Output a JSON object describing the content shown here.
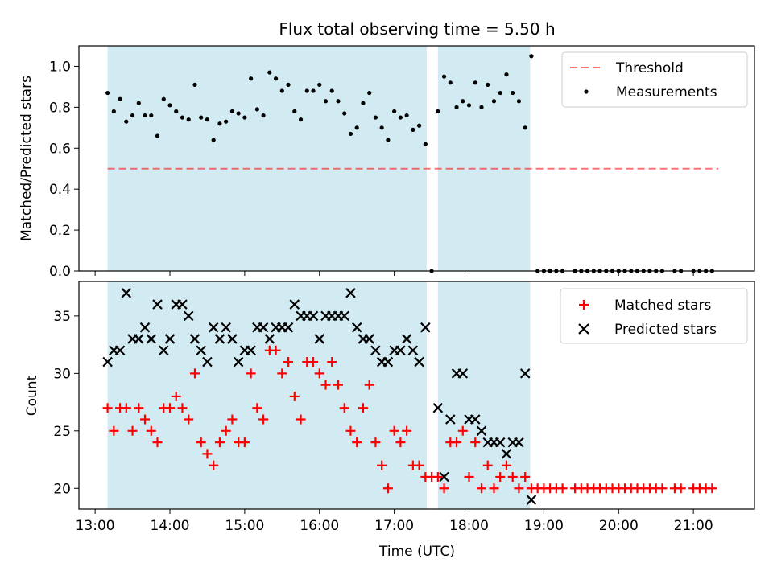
{
  "chart_data": [
    {
      "type": "scatter",
      "title": "Flux total observing time = 5.50 h",
      "ylabel": "Matched/Predicted stars",
      "ylim": [
        0,
        1.1
      ],
      "yticks": [
        0.0,
        0.2,
        0.4,
        0.6,
        0.8,
        1.0
      ],
      "ytick_labels": [
        "0.0",
        "0.2",
        "0.4",
        "0.6",
        "0.8",
        "1.0"
      ],
      "legend_position": "top-right",
      "shaded_intervals": [
        {
          "start": "13:10",
          "end": "17:26",
          "color": "#add8e6"
        },
        {
          "start": "17:35",
          "end": "18:49",
          "color": "#add8e6"
        }
      ],
      "threshold": {
        "name": "Threshold",
        "value": 0.5,
        "x_start": "13:10",
        "x_end": "21:20",
        "color": "#ff0000",
        "style": "dashed"
      },
      "measurements": {
        "name": "Measurements",
        "color": "#000000",
        "points": [
          [
            "13:10",
            0.87
          ],
          [
            "13:15",
            0.78
          ],
          [
            "13:20",
            0.84
          ],
          [
            "13:25",
            0.73
          ],
          [
            "13:30",
            0.76
          ],
          [
            "13:35",
            0.82
          ],
          [
            "13:40",
            0.76
          ],
          [
            "13:45",
            0.76
          ],
          [
            "13:50",
            0.66
          ],
          [
            "13:55",
            0.84
          ],
          [
            "14:00",
            0.81
          ],
          [
            "14:05",
            0.78
          ],
          [
            "14:10",
            0.75
          ],
          [
            "14:15",
            0.74
          ],
          [
            "14:20",
            0.91
          ],
          [
            "14:25",
            0.75
          ],
          [
            "14:30",
            0.74
          ],
          [
            "14:35",
            0.64
          ],
          [
            "14:40",
            0.72
          ],
          [
            "14:45",
            0.73
          ],
          [
            "14:50",
            0.78
          ],
          [
            "14:55",
            0.77
          ],
          [
            "15:00",
            0.75
          ],
          [
            "15:05",
            0.94
          ],
          [
            "15:10",
            0.79
          ],
          [
            "15:15",
            0.76
          ],
          [
            "15:20",
            0.97
          ],
          [
            "15:25",
            0.94
          ],
          [
            "15:30",
            0.88
          ],
          [
            "15:35",
            0.91
          ],
          [
            "15:40",
            0.78
          ],
          [
            "15:45",
            0.74
          ],
          [
            "15:50",
            0.88
          ],
          [
            "15:55",
            0.88
          ],
          [
            "16:00",
            0.91
          ],
          [
            "16:05",
            0.83
          ],
          [
            "16:10",
            0.88
          ],
          [
            "16:15",
            0.83
          ],
          [
            "16:20",
            0.77
          ],
          [
            "16:25",
            0.67
          ],
          [
            "16:30",
            0.7
          ],
          [
            "16:35",
            0.82
          ],
          [
            "16:40",
            0.87
          ],
          [
            "16:45",
            0.75
          ],
          [
            "16:50",
            0.7
          ],
          [
            "16:55",
            0.64
          ],
          [
            "17:00",
            0.78
          ],
          [
            "17:05",
            0.75
          ],
          [
            "17:10",
            0.76
          ],
          [
            "17:15",
            0.69
          ],
          [
            "17:20",
            0.71
          ],
          [
            "17:25",
            0.62
          ],
          [
            "17:30",
            0.0
          ],
          [
            "17:35",
            0.78
          ],
          [
            "17:40",
            0.95
          ],
          [
            "17:45",
            0.92
          ],
          [
            "17:50",
            0.8
          ],
          [
            "17:55",
            0.83
          ],
          [
            "18:00",
            0.81
          ],
          [
            "18:05",
            0.92
          ],
          [
            "18:10",
            0.8
          ],
          [
            "18:15",
            0.91
          ],
          [
            "18:20",
            0.83
          ],
          [
            "18:25",
            0.87
          ],
          [
            "18:30",
            0.96
          ],
          [
            "18:35",
            0.87
          ],
          [
            "18:40",
            0.83
          ],
          [
            "18:45",
            0.7
          ],
          [
            "18:50",
            1.05
          ],
          [
            "18:55",
            0.0
          ],
          [
            "19:00",
            0.0
          ],
          [
            "19:05",
            0.0
          ],
          [
            "19:10",
            0.0
          ],
          [
            "19:15",
            0.0
          ],
          [
            "19:25",
            0.0
          ],
          [
            "19:30",
            0.0
          ],
          [
            "19:35",
            0.0
          ],
          [
            "19:40",
            0.0
          ],
          [
            "19:45",
            0.0
          ],
          [
            "19:50",
            0.0
          ],
          [
            "19:55",
            0.0
          ],
          [
            "20:00",
            0.0
          ],
          [
            "20:05",
            0.0
          ],
          [
            "20:10",
            0.0
          ],
          [
            "20:15",
            0.0
          ],
          [
            "20:20",
            0.0
          ],
          [
            "20:25",
            0.0
          ],
          [
            "20:30",
            0.0
          ],
          [
            "20:35",
            0.0
          ],
          [
            "20:45",
            0.0
          ],
          [
            "20:50",
            0.0
          ],
          [
            "21:00",
            0.0
          ],
          [
            "21:05",
            0.0
          ],
          [
            "21:10",
            0.0
          ],
          [
            "21:15",
            0.0
          ]
        ]
      }
    },
    {
      "type": "scatter",
      "xlabel": "Time (UTC)",
      "ylabel": "Count",
      "ylim": [
        18.2,
        38.0
      ],
      "yticks": [
        20,
        25,
        30,
        35
      ],
      "ytick_labels": [
        "20",
        "25",
        "30",
        "35"
      ],
      "xticks": [
        "13:00",
        "14:00",
        "15:00",
        "16:00",
        "17:00",
        "18:00",
        "19:00",
        "20:00",
        "21:00"
      ],
      "xlim": [
        "12:47",
        "21:49"
      ],
      "legend_position": "top-right",
      "shaded_intervals": [
        {
          "start": "13:10",
          "end": "17:26",
          "color": "#add8e6"
        },
        {
          "start": "17:35",
          "end": "18:49",
          "color": "#add8e6"
        }
      ],
      "matched": {
        "name": "Matched stars",
        "color": "#ff0000",
        "points": [
          [
            "13:10",
            27
          ],
          [
            "13:15",
            25
          ],
          [
            "13:20",
            27
          ],
          [
            "13:25",
            27
          ],
          [
            "13:30",
            25
          ],
          [
            "13:35",
            27
          ],
          [
            "13:40",
            26
          ],
          [
            "13:45",
            25
          ],
          [
            "13:50",
            24
          ],
          [
            "13:55",
            27
          ],
          [
            "14:00",
            27
          ],
          [
            "14:05",
            28
          ],
          [
            "14:10",
            27
          ],
          [
            "14:15",
            26
          ],
          [
            "14:20",
            30
          ],
          [
            "14:25",
            24
          ],
          [
            "14:30",
            23
          ],
          [
            "14:35",
            22
          ],
          [
            "14:40",
            24
          ],
          [
            "14:45",
            25
          ],
          [
            "14:50",
            26
          ],
          [
            "14:55",
            24
          ],
          [
            "15:00",
            24
          ],
          [
            "15:05",
            30
          ],
          [
            "15:10",
            27
          ],
          [
            "15:15",
            26
          ],
          [
            "15:20",
            32
          ],
          [
            "15:25",
            32
          ],
          [
            "15:30",
            30
          ],
          [
            "15:35",
            31
          ],
          [
            "15:40",
            28
          ],
          [
            "15:45",
            26
          ],
          [
            "15:50",
            31
          ],
          [
            "15:55",
            31
          ],
          [
            "16:00",
            30
          ],
          [
            "16:05",
            29
          ],
          [
            "16:10",
            31
          ],
          [
            "16:15",
            29
          ],
          [
            "16:20",
            27
          ],
          [
            "16:25",
            25
          ],
          [
            "16:30",
            24
          ],
          [
            "16:35",
            27
          ],
          [
            "16:40",
            29
          ],
          [
            "16:45",
            24
          ],
          [
            "16:50",
            22
          ],
          [
            "16:55",
            20
          ],
          [
            "17:00",
            25
          ],
          [
            "17:05",
            24
          ],
          [
            "17:10",
            25
          ],
          [
            "17:15",
            22
          ],
          [
            "17:20",
            22
          ],
          [
            "17:25",
            21
          ],
          [
            "17:30",
            21
          ],
          [
            "17:35",
            21
          ],
          [
            "17:40",
            20
          ],
          [
            "17:45",
            24
          ],
          [
            "17:50",
            24
          ],
          [
            "17:55",
            25
          ],
          [
            "18:00",
            21
          ],
          [
            "18:05",
            24
          ],
          [
            "18:10",
            20
          ],
          [
            "18:15",
            22
          ],
          [
            "18:20",
            20
          ],
          [
            "18:25",
            21
          ],
          [
            "18:30",
            22
          ],
          [
            "18:35",
            21
          ],
          [
            "18:40",
            20
          ],
          [
            "18:45",
            21
          ],
          [
            "18:50",
            20
          ],
          [
            "18:55",
            20
          ],
          [
            "19:00",
            20
          ],
          [
            "19:05",
            20
          ],
          [
            "19:10",
            20
          ],
          [
            "19:15",
            20
          ],
          [
            "19:25",
            20
          ],
          [
            "19:30",
            20
          ],
          [
            "19:35",
            20
          ],
          [
            "19:40",
            20
          ],
          [
            "19:45",
            20
          ],
          [
            "19:50",
            20
          ],
          [
            "19:55",
            20
          ],
          [
            "20:00",
            20
          ],
          [
            "20:05",
            20
          ],
          [
            "20:10",
            20
          ],
          [
            "20:15",
            20
          ],
          [
            "20:20",
            20
          ],
          [
            "20:25",
            20
          ],
          [
            "20:30",
            20
          ],
          [
            "20:35",
            20
          ],
          [
            "20:45",
            20
          ],
          [
            "20:50",
            20
          ],
          [
            "21:00",
            20
          ],
          [
            "21:05",
            20
          ],
          [
            "21:10",
            20
          ],
          [
            "21:15",
            20
          ]
        ]
      },
      "predicted": {
        "name": "Predicted stars",
        "color": "#000000",
        "points": [
          [
            "13:10",
            31
          ],
          [
            "13:15",
            32
          ],
          [
            "13:20",
            32
          ],
          [
            "13:25",
            37
          ],
          [
            "13:30",
            33
          ],
          [
            "13:35",
            33
          ],
          [
            "13:40",
            34
          ],
          [
            "13:45",
            33
          ],
          [
            "13:50",
            36
          ],
          [
            "13:55",
            32
          ],
          [
            "14:00",
            33
          ],
          [
            "14:05",
            36
          ],
          [
            "14:10",
            36
          ],
          [
            "14:15",
            35
          ],
          [
            "14:20",
            33
          ],
          [
            "14:25",
            32
          ],
          [
            "14:30",
            31
          ],
          [
            "14:35",
            34
          ],
          [
            "14:40",
            33
          ],
          [
            "14:45",
            34
          ],
          [
            "14:50",
            33
          ],
          [
            "14:55",
            31
          ],
          [
            "15:00",
            32
          ],
          [
            "15:05",
            32
          ],
          [
            "15:10",
            34
          ],
          [
            "15:15",
            34
          ],
          [
            "15:20",
            33
          ],
          [
            "15:25",
            34
          ],
          [
            "15:30",
            34
          ],
          [
            "15:35",
            34
          ],
          [
            "15:40",
            36
          ],
          [
            "15:45",
            35
          ],
          [
            "15:50",
            35
          ],
          [
            "15:55",
            35
          ],
          [
            "16:00",
            33
          ],
          [
            "16:05",
            35
          ],
          [
            "16:10",
            35
          ],
          [
            "16:15",
            35
          ],
          [
            "16:20",
            35
          ],
          [
            "16:25",
            37
          ],
          [
            "16:30",
            34
          ],
          [
            "16:35",
            33
          ],
          [
            "16:40",
            33
          ],
          [
            "16:45",
            32
          ],
          [
            "16:50",
            31
          ],
          [
            "16:55",
            31
          ],
          [
            "17:00",
            32
          ],
          [
            "17:05",
            32
          ],
          [
            "17:10",
            33
          ],
          [
            "17:15",
            32
          ],
          [
            "17:20",
            31
          ],
          [
            "17:25",
            34
          ],
          [
            "17:35",
            27
          ],
          [
            "17:40",
            21
          ],
          [
            "17:45",
            26
          ],
          [
            "17:50",
            30
          ],
          [
            "17:55",
            30
          ],
          [
            "18:00",
            26
          ],
          [
            "18:05",
            26
          ],
          [
            "18:10",
            25
          ],
          [
            "18:15",
            24
          ],
          [
            "18:20",
            24
          ],
          [
            "18:25",
            24
          ],
          [
            "18:30",
            23
          ],
          [
            "18:35",
            24
          ],
          [
            "18:40",
            24
          ],
          [
            "18:45",
            30
          ],
          [
            "18:50",
            19
          ]
        ]
      }
    }
  ]
}
